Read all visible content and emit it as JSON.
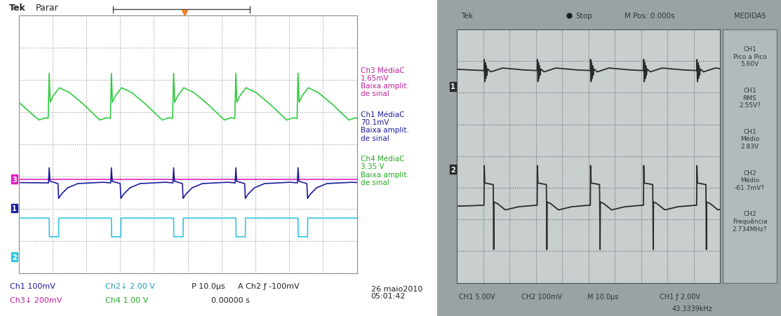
{
  "chart_data": [
    {
      "type": "line",
      "header": [
        "Tek",
        "Parar"
      ],
      "xlim": [
        0,
        100
      ],
      "xticks": [
        0,
        10,
        20,
        30,
        40,
        50,
        60,
        70,
        80,
        90,
        100
      ],
      "ylim": [
        -4,
        4
      ],
      "yticks": [
        -4,
        -3,
        -2,
        -1,
        0,
        1,
        2,
        3,
        4
      ],
      "grid": true,
      "tick_labels": false,
      "series": [
        {
          "color": "#2ecc40",
          "x": [
            0,
            4.5,
            6.0,
            8.0,
            8.7,
            9.0,
            9.3,
            10.2,
            12.0,
            15.0,
            19.0,
            22.5,
            24.0,
            26.0,
            27.1,
            27.4,
            27.7,
            28.6,
            30.4,
            33.4,
            37.4,
            40.9,
            42.4,
            44.4,
            45.5,
            45.8,
            46.1,
            47.0,
            48.8,
            51.8,
            55.8,
            59.3,
            60.8,
            62.8,
            63.9,
            64.2,
            64.5,
            65.4,
            67.2,
            70.2,
            74.2,
            77.7,
            79.2,
            81.2,
            82.3,
            82.6,
            82.9,
            83.8,
            85.6,
            88.6,
            92.6,
            96.1,
            97.6,
            99.6,
            100
          ],
          "values": [
            1.3,
            0.88,
            0.75,
            0.82,
            0.8,
            2.2,
            1.3,
            1.5,
            1.75,
            1.6,
            1.25,
            0.9,
            0.75,
            0.82,
            0.8,
            2.2,
            1.3,
            1.5,
            1.75,
            1.6,
            1.25,
            0.9,
            0.75,
            0.82,
            0.8,
            2.2,
            1.3,
            1.5,
            1.75,
            1.6,
            1.25,
            0.9,
            0.75,
            0.82,
            0.8,
            2.2,
            1.3,
            1.5,
            1.75,
            1.6,
            1.25,
            0.9,
            0.75,
            0.82,
            0.8,
            2.2,
            1.3,
            1.5,
            1.75,
            1.6,
            1.25,
            0.9,
            0.75,
            0.82,
            0.8
          ]
        },
        {
          "color": "#e020c0",
          "ref_label": "3",
          "ref_level": -1.08,
          "x": [
            0,
            100
          ],
          "values": [
            -1.08,
            -1.08
          ]
        },
        {
          "color": "#1c1c9c",
          "ref_label": "1",
          "ref_level": -1.98,
          "x": [
            0,
            8.8,
            9.0,
            9.25,
            11.6,
            11.8,
            12.6,
            14.5,
            17.5,
            25.0,
            27.2,
            27.4,
            27.65,
            30.0,
            30.2,
            31.0,
            32.9,
            35.9,
            43.4,
            45.6,
            45.8,
            46.05,
            48.4,
            48.6,
            49.4,
            51.3,
            54.3,
            61.8,
            64.0,
            64.2,
            64.45,
            66.8,
            67.0,
            67.8,
            69.7,
            72.7,
            80.2,
            82.4,
            82.6,
            82.85,
            85.2,
            85.4,
            86.2,
            88.1,
            91.1,
            98.6,
            100
          ],
          "values": [
            -1.19,
            -1.2,
            -0.73,
            -1.15,
            -1.22,
            -1.68,
            -1.55,
            -1.35,
            -1.22,
            -1.18,
            -1.2,
            -0.73,
            -1.15,
            -1.22,
            -1.68,
            -1.55,
            -1.35,
            -1.22,
            -1.18,
            -1.2,
            -0.73,
            -1.15,
            -1.22,
            -1.68,
            -1.55,
            -1.35,
            -1.22,
            -1.18,
            -1.2,
            -0.73,
            -1.15,
            -1.22,
            -1.68,
            -1.55,
            -1.35,
            -1.22,
            -1.18,
            -1.2,
            -0.73,
            -1.15,
            -1.22,
            -1.68,
            -1.55,
            -1.35,
            -1.22,
            -1.18,
            -1.19
          ]
        },
        {
          "color": "#33c6e0",
          "ref_label": "2",
          "ref_level": -3.5,
          "x": [
            0,
            9.0,
            9.05,
            11.8,
            11.85,
            27.4,
            27.45,
            30.2,
            30.25,
            45.8,
            45.85,
            48.6,
            48.65,
            64.2,
            64.25,
            67.0,
            67.05,
            82.6,
            82.65,
            85.4,
            85.45,
            100
          ],
          "values": [
            -2.29,
            -2.29,
            -2.87,
            -2.87,
            -2.29,
            -2.29,
            -2.87,
            -2.87,
            -2.29,
            -2.29,
            -2.87,
            -2.87,
            -2.29,
            -2.29,
            -2.87,
            -2.87,
            -2.29,
            -2.29,
            -2.87,
            -2.87,
            -2.29,
            -2.29
          ]
        }
      ],
      "measurements": [
        {
          "text": "Ch3 MédiaC\n1.65mV\nBaixa amplit.\nde sinal",
          "color": "#c0209a"
        },
        {
          "text": "Ch1 MédiaC\n70.1mV\nBaixa amplit.\nde sinal",
          "color": "#1c1c9c"
        },
        {
          "text": "Ch4 MédiaC\n3.35 V\nBaixa amplit.\nde sinal",
          "color": "#22aa22"
        }
      ],
      "footer": [
        "Ch1 100mV",
        "Ch2↓ 2.00 V",
        "P 10.0µs",
        "A Ch2 ƒ -100mV",
        "Ch3↓ 200mV",
        "Ch4 1.00 V",
        "0.00000 s",
        "26 maio2010\n05:01:42"
      ]
    },
    {
      "type": "line",
      "header": [
        "Tek",
        "Stop",
        "M Pos: 0.000s"
      ],
      "xlim": [
        0,
        100
      ],
      "xticks": [
        0,
        10,
        20,
        30,
        40,
        50,
        60,
        70,
        80,
        90,
        100
      ],
      "ylim": [
        -4,
        4
      ],
      "yticks": [
        -4,
        -3,
        -2,
        -1,
        0,
        1,
        2,
        3,
        4
      ],
      "grid": true,
      "tick_labels": false,
      "series": [
        {
          "color": "#2b2b2b",
          "ref_label": "1",
          "ref_level": 2.2,
          "x": [
            0,
            5.0,
            10.3,
            10.4,
            10.6,
            10.8,
            11.0,
            11.2,
            11.4,
            11.7,
            12.9,
            17.4,
            25.4,
            30.5,
            30.6,
            30.8,
            31.0,
            31.2,
            31.4,
            31.6,
            31.9,
            33.1,
            37.6,
            45.6,
            50.7,
            50.8,
            51.0,
            51.2,
            51.4,
            51.6,
            51.8,
            52.1,
            53.3,
            57.8,
            65.8,
            70.9,
            71.0,
            71.2,
            71.4,
            71.6,
            71.8,
            72.0,
            72.3,
            73.5,
            78.0,
            86.0,
            91.1,
            91.2,
            91.4,
            91.6,
            91.8,
            92.0,
            92.2,
            92.5,
            93.7,
            98.2,
            100
          ],
          "values": [
            2.74,
            2.72,
            2.7,
            3.05,
            2.35,
            2.95,
            2.45,
            2.85,
            2.55,
            2.75,
            2.66,
            2.78,
            2.72,
            2.7,
            3.05,
            2.35,
            2.95,
            2.45,
            2.85,
            2.55,
            2.75,
            2.66,
            2.78,
            2.72,
            2.7,
            3.05,
            2.35,
            2.95,
            2.45,
            2.85,
            2.55,
            2.75,
            2.66,
            2.78,
            2.72,
            2.7,
            3.05,
            2.35,
            2.95,
            2.45,
            2.85,
            2.55,
            2.75,
            2.66,
            2.78,
            2.72,
            2.7,
            3.05,
            2.35,
            2.95,
            2.45,
            2.85,
            2.55,
            2.75,
            2.66,
            2.78,
            2.76
          ]
        },
        {
          "color": "#2b2b2b",
          "ref_label": "2",
          "ref_level": -0.42,
          "x": [
            0,
            5.0,
            10.3,
            10.4,
            10.6,
            13.8,
            13.9,
            14.0,
            14.1,
            15.4,
            18.4,
            23.4,
            30.5,
            30.6,
            30.8,
            34.0,
            34.1,
            34.2,
            34.3,
            35.6,
            38.6,
            43.6,
            50.7,
            50.8,
            51.0,
            54.2,
            54.3,
            54.4,
            54.5,
            55.8,
            58.8,
            63.8,
            70.9,
            71.0,
            71.2,
            74.4,
            74.5,
            74.6,
            74.7,
            76.0,
            79.0,
            84.0,
            91.1,
            91.2,
            91.4,
            94.6,
            94.7,
            94.8,
            94.9,
            96.2,
            99.2,
            100
          ],
          "values": [
            -1.58,
            -1.57,
            -1.55,
            -0.3,
            -0.85,
            -0.9,
            -1.75,
            -2.95,
            -1.45,
            -1.5,
            -1.7,
            -1.6,
            -1.55,
            -0.3,
            -0.85,
            -0.9,
            -1.75,
            -2.95,
            -1.45,
            -1.5,
            -1.7,
            -1.6,
            -1.55,
            -0.3,
            -0.85,
            -0.9,
            -1.75,
            -2.95,
            -1.45,
            -1.5,
            -1.7,
            -1.6,
            -1.55,
            -0.3,
            -0.85,
            -0.9,
            -1.75,
            -2.95,
            -1.45,
            -1.5,
            -1.7,
            -1.6,
            -1.55,
            -0.3,
            -0.85,
            -0.9,
            -1.75,
            -2.95,
            -1.45,
            -1.5,
            -1.7,
            -1.68
          ]
        }
      ],
      "measurements_title": "MEDIDAS",
      "measurements": [
        {
          "text": "CH1\nPico a Pico\n5.60V"
        },
        {
          "text": "CH1\nRMS\n2.55V?"
        },
        {
          "text": "CH1\nMédio\n2.83V"
        },
        {
          "text": "CH2\nMédio\n-61.7mV?"
        },
        {
          "text": "CH2\nFrequência\n2.734MHz?"
        }
      ],
      "footer": [
        "CH1 5.00V",
        "CH2 100mV",
        "M 10.0µs",
        "CH1 ƒ 2.00V",
        "43.3339kHz"
      ]
    }
  ]
}
